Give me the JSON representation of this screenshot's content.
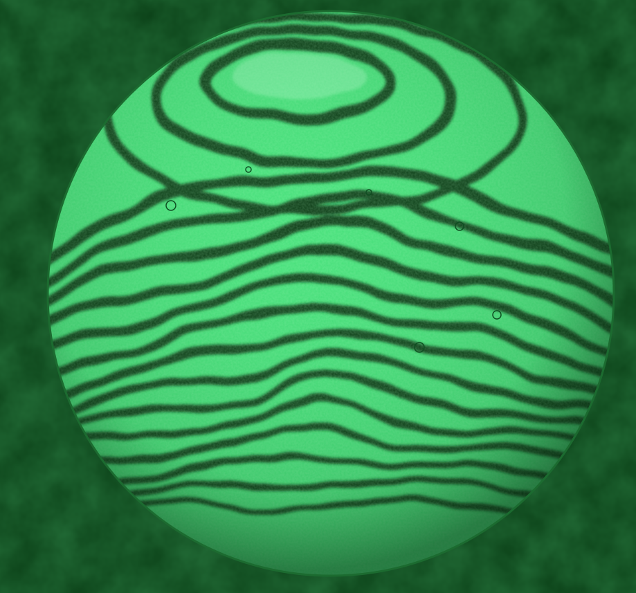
{
  "image": {
    "subject": "interferogram",
    "colors": {
      "background_dark": "#0a3f16",
      "background_mid": "#145a22",
      "fringe_bright": "#46e07a",
      "fringe_peak": "#8af2ae",
      "fringe_dark": "#0a3a18",
      "rim": "#1c6b30"
    },
    "fringe_count": 14
  }
}
